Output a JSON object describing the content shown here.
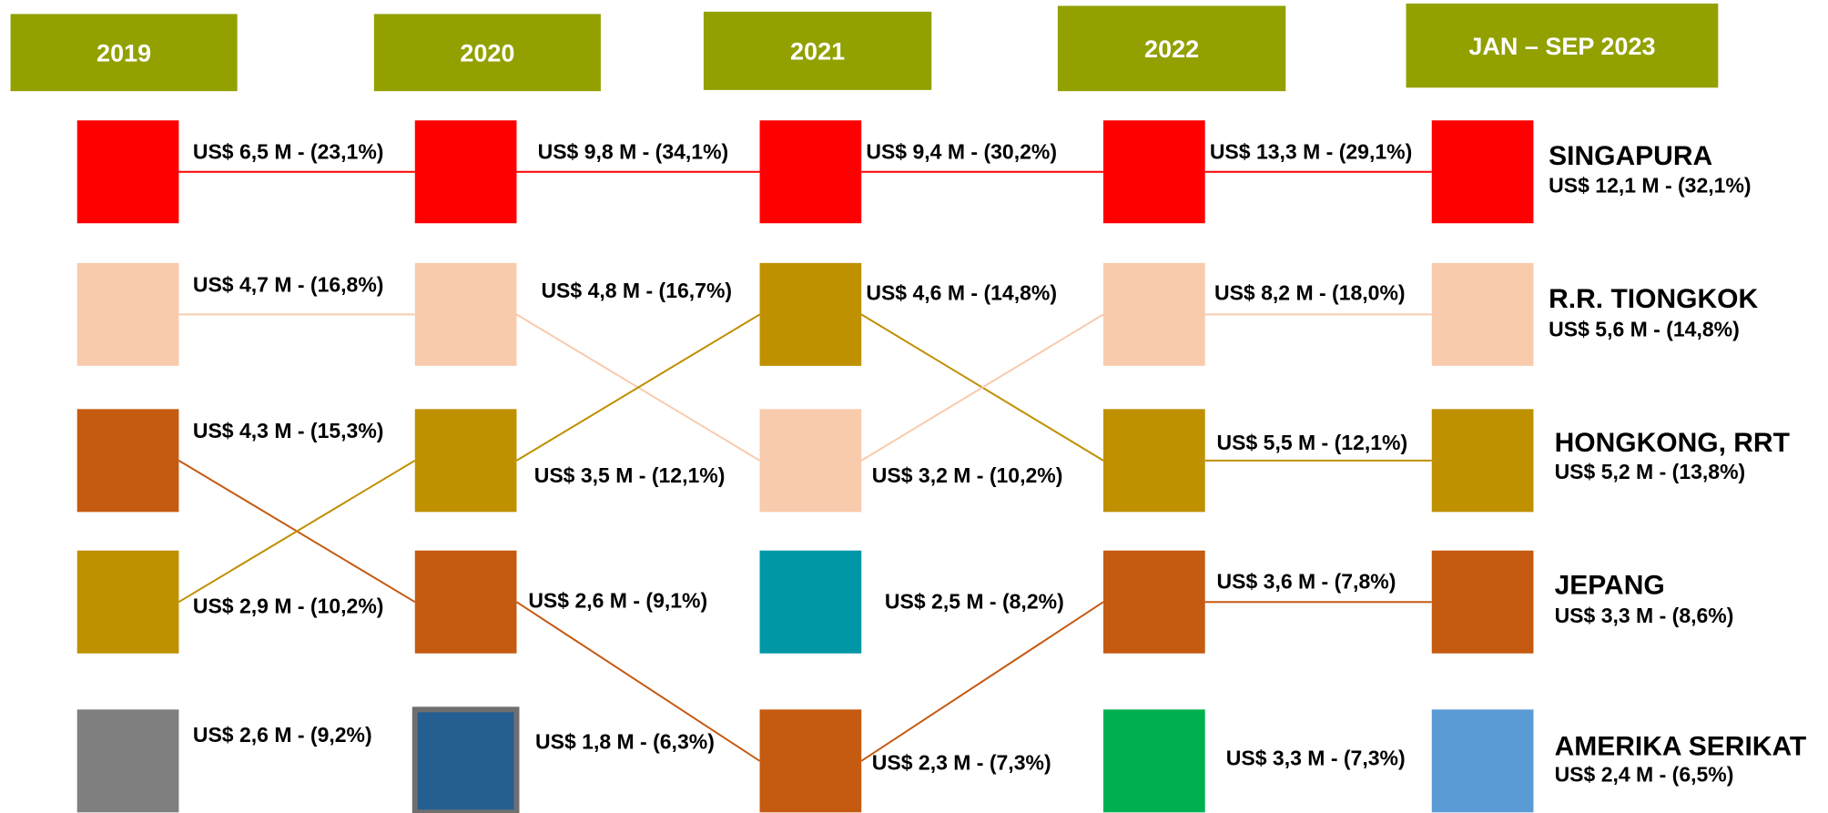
{
  "headers": [
    "2019",
    "2020",
    "2021",
    "2022",
    "JAN – SEP 2023"
  ],
  "columns": [
    {
      "items": [
        {
          "label": "US$ 6,5 M - (23,1%)",
          "color": "#ff0000"
        },
        {
          "label": "US$ 4,7 M - (16,8%)",
          "color": "#f8cbad"
        },
        {
          "label": "US$ 4,3 M - (15,3%)",
          "color": "#c55a11"
        },
        {
          "label": "US$ 2,9 M - (10,2%)",
          "color": "#bf9000"
        },
        {
          "label": "US$ 2,6 M - (9,2%)",
          "color": "#7f7f7f"
        }
      ]
    },
    {
      "items": [
        {
          "label": "US$ 9,8 M - (34,1%)",
          "color": "#ff0000"
        },
        {
          "label": "US$ 4,8 M - (16,7%)",
          "color": "#f8cbad"
        },
        {
          "label": "US$ 3,5 M - (12,1%)",
          "color": "#bf9000"
        },
        {
          "label": "US$ 2,6 M - (9,1%)",
          "color": "#c55a11"
        },
        {
          "label": "US$ 1,8 M - (6,3%)",
          "color": "#255e91"
        }
      ]
    },
    {
      "items": [
        {
          "label": "US$ 9,4 M - (30,2%)",
          "color": "#ff0000"
        },
        {
          "label": "US$ 4,6 M - (14,8%)",
          "color": "#bf9000"
        },
        {
          "label": "US$ 3,2 M - (10,2%)",
          "color": "#f8cbad"
        },
        {
          "label": "US$ 2,5 M - (8,2%)",
          "color": "#0097a7"
        },
        {
          "label": "US$ 2,3 M - (7,3%)",
          "color": "#c55a11"
        }
      ]
    },
    {
      "items": [
        {
          "label": "US$ 13,3 M - (29,1%)",
          "color": "#ff0000"
        },
        {
          "label": "US$ 8,2 M - (18,0%)",
          "color": "#f8cbad"
        },
        {
          "label": "US$ 5,5 M - (12,1%)",
          "color": "#bf9000"
        },
        {
          "label": "US$ 3,6 M - (7,8%)",
          "color": "#c55a11"
        },
        {
          "label": "US$ 3,3 M - (7,3%)",
          "color": "#00b050"
        }
      ]
    },
    {
      "items": [
        {
          "name": "SINGAPURA",
          "label": "US$ 12,1 M - (32,1%)",
          "color": "#ff0000"
        },
        {
          "name": "R.R. TIONGKOK",
          "label": "US$ 5,6 M - (14,8%)",
          "color": "#f8cbad"
        },
        {
          "name": "HONGKONG, RRT",
          "label": "US$ 5,2 M - (13,8%)",
          "color": "#bf9000"
        },
        {
          "name": "JEPANG",
          "label": "US$ 3,3 M - (8,6%)",
          "color": "#c55a11"
        },
        {
          "name": "AMERIKA SERIKAT",
          "label": "US$ 2,4 M - (6,5%)",
          "color": "#5b9bd5"
        }
      ]
    }
  ]
}
